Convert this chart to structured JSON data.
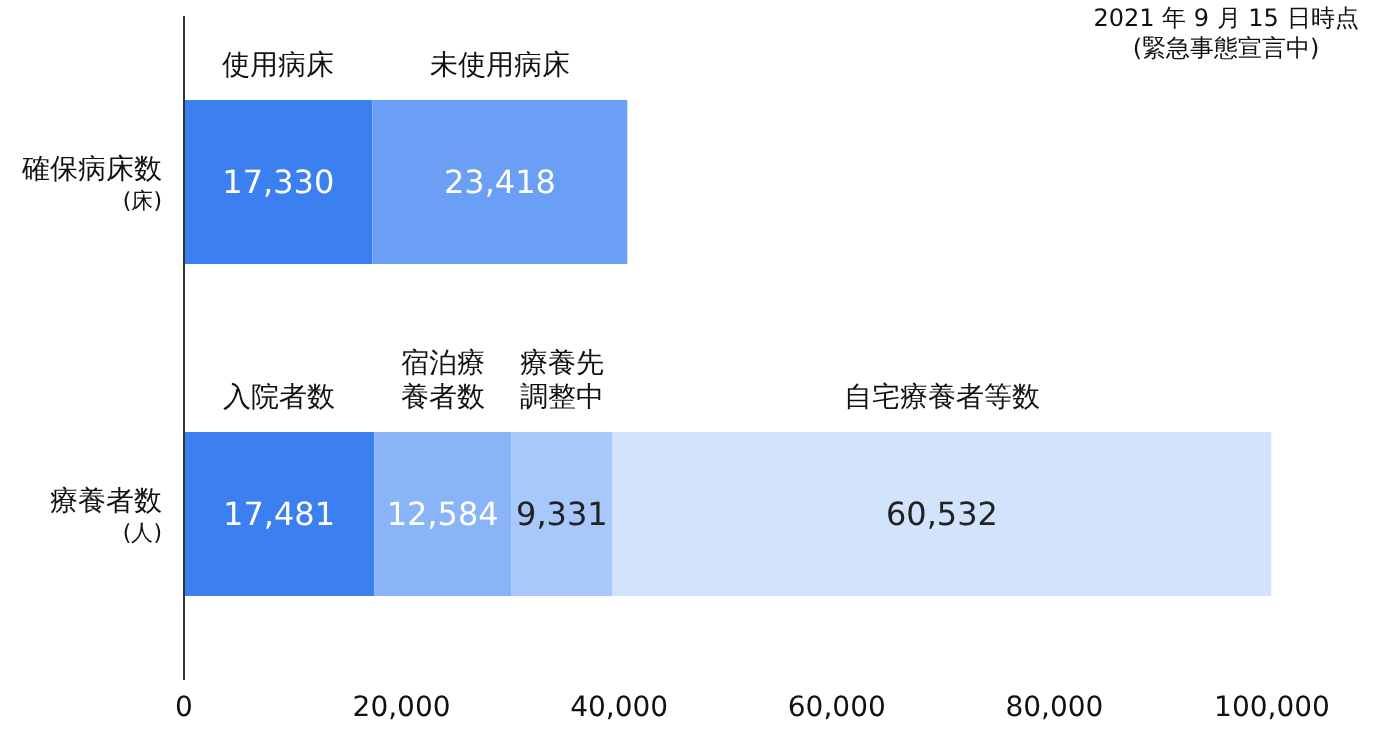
{
  "chart_data": {
    "type": "bar",
    "orientation": "horizontal",
    "stacked": true,
    "categories": [
      "確保病床数$_{(床)}$",
      "療養者数$_{(人)}$"
    ],
    "series": [
      {
        "name": "使用病床",
        "color": "#3b7ff0",
        "values": [
          17330,
          null
        ],
        "value_labels": [
          "17,330",
          null
        ]
      },
      {
        "name": "未使用病床",
        "color": "#6a9ff5",
        "values": [
          23418,
          null
        ],
        "value_labels": [
          "23,418",
          null
        ]
      },
      {
        "name": "入院者数",
        "color": "#3b7ff0",
        "values": [
          null,
          17481
        ],
        "value_labels": [
          null,
          "17,481"
        ]
      },
      {
        "name": "宿泊療養者数",
        "color": "#8ab4f8",
        "values": [
          null,
          12584
        ],
        "value_labels": [
          null,
          "12,584"
        ]
      },
      {
        "name": "療養先調整中",
        "color": "#a8c7fa",
        "values": [
          null,
          9331
        ],
        "value_labels": [
          null,
          "9,331"
        ]
      },
      {
        "name": "自宅療養者等数",
        "color": "#d2e3fc",
        "values": [
          null,
          60532
        ],
        "value_labels": [
          null,
          "60,532"
        ]
      }
    ],
    "xlim": [
      0,
      100000
    ],
    "xticks": [
      0,
      {
        "value": 20000,
        "label": "20,000"
      },
      {
        "value": 40000,
        "label": "40,000"
      },
      {
        "value": 60000,
        "label": "60,000"
      },
      {
        "value": 80000,
        "label": "80,000"
      },
      {
        "value": 100000,
        "label": "100,000"
      }
    ],
    "grid": false,
    "legend": false,
    "annotations": [
      "2021 年 9 月 15 日時点(緊急事態宣言中)"
    ]
  }
}
